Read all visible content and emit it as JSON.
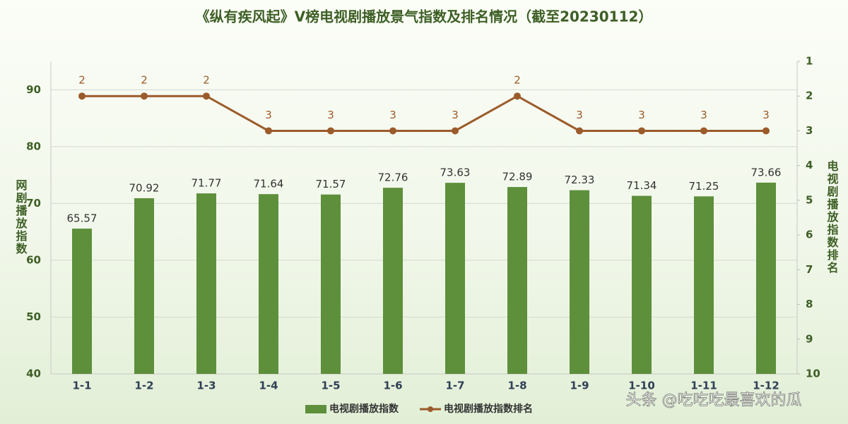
{
  "chart_data": {
    "type": "bar",
    "title": "《纵有疾风起》V榜电视剧播放景气指数及排名情况（截至20230112）",
    "categories": [
      "1-1",
      "1-2",
      "1-3",
      "1-4",
      "1-5",
      "1-6",
      "1-7",
      "1-8",
      "1-9",
      "1-10",
      "1-11",
      "1-12"
    ],
    "series": [
      {
        "name": "电视剧播放指数",
        "type": "bar",
        "color": "#5e8f3b",
        "values": [
          65.57,
          70.92,
          71.77,
          71.64,
          71.57,
          72.76,
          73.63,
          72.89,
          72.33,
          71.34,
          71.25,
          73.66
        ]
      },
      {
        "name": "电视剧播放指数排名",
        "type": "line",
        "axis": "y2",
        "color": "#9b5b2a",
        "values": [
          2,
          2,
          2,
          3,
          3,
          3,
          3,
          2,
          3,
          3,
          3,
          3
        ]
      }
    ],
    "ylabel": "网剧播放指数",
    "y2label": "电视剧播放指数排名",
    "ylim": [
      40,
      95
    ],
    "yticks": [
      40,
      50,
      60,
      70,
      80,
      90
    ],
    "y2lim": [
      1,
      10
    ],
    "y2ticks": [
      1,
      2,
      3,
      4,
      5,
      6,
      7,
      8,
      9,
      10
    ],
    "y2_inverted": true,
    "grid": true,
    "legend": "bottom",
    "watermark": "头条 @吃吃吃最喜欢的瓜"
  }
}
